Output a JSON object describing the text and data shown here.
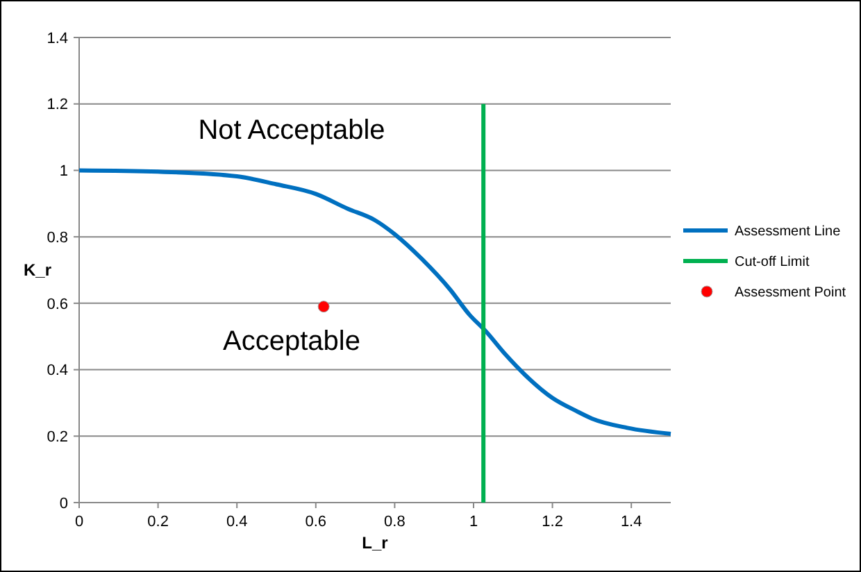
{
  "chart_data": {
    "type": "line",
    "xlabel": "L_r",
    "ylabel": "K_r",
    "xlim": [
      0,
      1.5
    ],
    "xticks": [
      0,
      0.2,
      0.4,
      0.6,
      0.8,
      1,
      1.2,
      1.4
    ],
    "ylim": [
      0,
      1.4
    ],
    "yticks": [
      0,
      0.2,
      0.4,
      0.6,
      0.8,
      1,
      1.2,
      1.4
    ],
    "grid": "y",
    "legend": "right",
    "annotations": [
      "Not Acceptable",
      "Acceptable"
    ],
    "series": [
      {
        "name": "Assessment Line",
        "color": "#0070c0",
        "x": [
          0,
          0.2,
          0.4,
          0.5,
          0.6,
          0.68,
          0.75,
          0.8,
          0.87,
          0.94,
          0.99,
          1.03,
          1.08,
          1.13,
          1.2,
          1.26,
          1.3,
          1.39,
          1.5
        ],
        "values": [
          1.0,
          0.996,
          0.982,
          0.958,
          0.929,
          0.885,
          0.85,
          0.808,
          0.732,
          0.642,
          0.565,
          0.517,
          0.447,
          0.385,
          0.315,
          0.276,
          0.253,
          0.225,
          0.207
        ]
      },
      {
        "name": "Cut-off Limit",
        "color": "#00b050",
        "x": [
          1.025,
          1.025
        ],
        "values": [
          0,
          1.2
        ]
      },
      {
        "name": "Assessment Point",
        "type": "scatter",
        "marker": "circle",
        "color": "#ff0000",
        "x": [
          0.62
        ],
        "values": [
          0.59
        ]
      }
    ]
  }
}
